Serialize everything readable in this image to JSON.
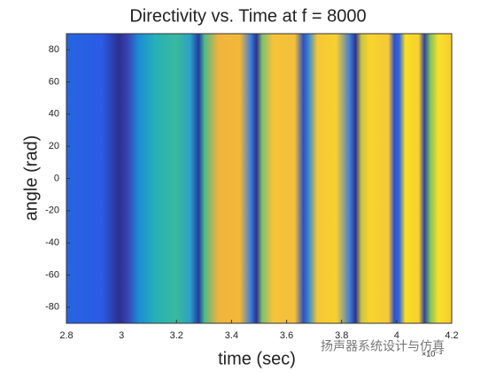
{
  "chart_data": {
    "type": "heatmap",
    "title": "Directivity vs. Time at f = 8000",
    "xlabel": "time (sec)",
    "ylabel": "angle (rad)",
    "x_exponent_label": "×10⁻³",
    "watermark": "扬声器系统设计与仿真",
    "x": [
      2.8,
      2.93,
      2.99,
      3.02,
      3.06,
      3.12,
      3.2,
      3.25,
      3.28,
      3.3,
      3.35,
      3.43,
      3.47,
      3.49,
      3.51,
      3.55,
      3.63,
      3.66,
      3.68,
      3.71,
      3.78,
      3.83,
      3.85,
      3.87,
      3.9,
      3.97,
      3.99,
      4.01,
      4.03,
      4.08,
      4.1,
      4.12,
      4.15,
      4.2
    ],
    "colors": [
      "#2766e0",
      "#2a5ae6",
      "#2b2f8f",
      "#3a3fb0",
      "#1c8ad8",
      "#26b0b8",
      "#3ab99c",
      "#2d9fc8",
      "#1f3a9e",
      "#4cb98a",
      "#f0b43c",
      "#f2b83a",
      "#3a7be0",
      "#2a2f8c",
      "#7bbf70",
      "#f7c23a",
      "#f1c03a",
      "#2d4fc0",
      "#3a8ad0",
      "#f4c638",
      "#f8d22e",
      "#3d7bd6",
      "#2a2f90",
      "#c5c248",
      "#f9d52a",
      "#f5c83a",
      "#2e50c8",
      "#3a6ad8",
      "#fadf22",
      "#f7d02e",
      "#2d3f9e",
      "#7bbd60",
      "#f9e02a",
      "#f6cd30"
    ],
    "xlim": [
      2.8,
      4.2
    ],
    "xticks": [
      2.8,
      3,
      3.2,
      3.4,
      3.6,
      3.8,
      4,
      4.2
    ],
    "ylim": [
      -90,
      90
    ],
    "yticks": [
      -80,
      -60,
      -40,
      -20,
      0,
      20,
      40,
      60,
      80
    ]
  }
}
